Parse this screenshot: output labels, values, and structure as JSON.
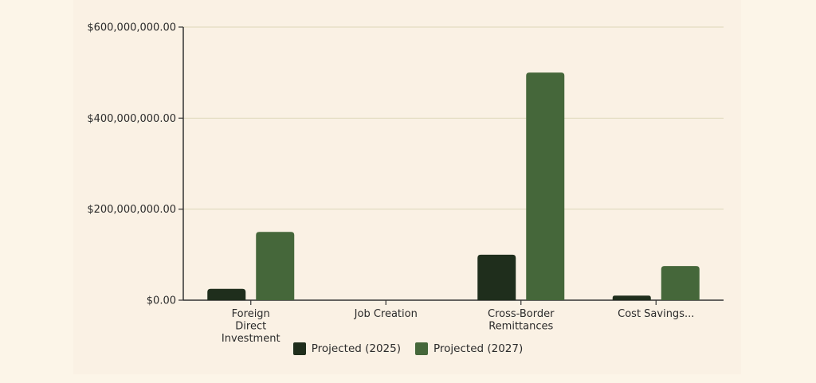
{
  "chart_data": {
    "type": "bar",
    "title": "",
    "xlabel": "",
    "ylabel": "",
    "categories": [
      [
        "Foreign",
        "Direct",
        "Investment"
      ],
      [
        "Job Creation"
      ],
      [
        "Cross-Border",
        "Remittances"
      ],
      [
        "Cost Savings..."
      ]
    ],
    "series": [
      {
        "name": "Projected (2025)",
        "color": "#1f2e1c",
        "values": [
          25000000,
          0,
          100000000,
          10000000
        ]
      },
      {
        "name": "Projected (2027)",
        "color": "#45673a",
        "values": [
          150000000,
          0,
          500000000,
          75000000
        ]
      }
    ],
    "ylim": [
      0,
      600000000
    ],
    "yticks": [
      0,
      200000000,
      400000000,
      600000000
    ],
    "ytick_labels": [
      "$0.00",
      "$200,000,000.00",
      "$400,000,000.00",
      "$600,000,000.00"
    ],
    "grid": true,
    "legend_position": "bottom"
  }
}
